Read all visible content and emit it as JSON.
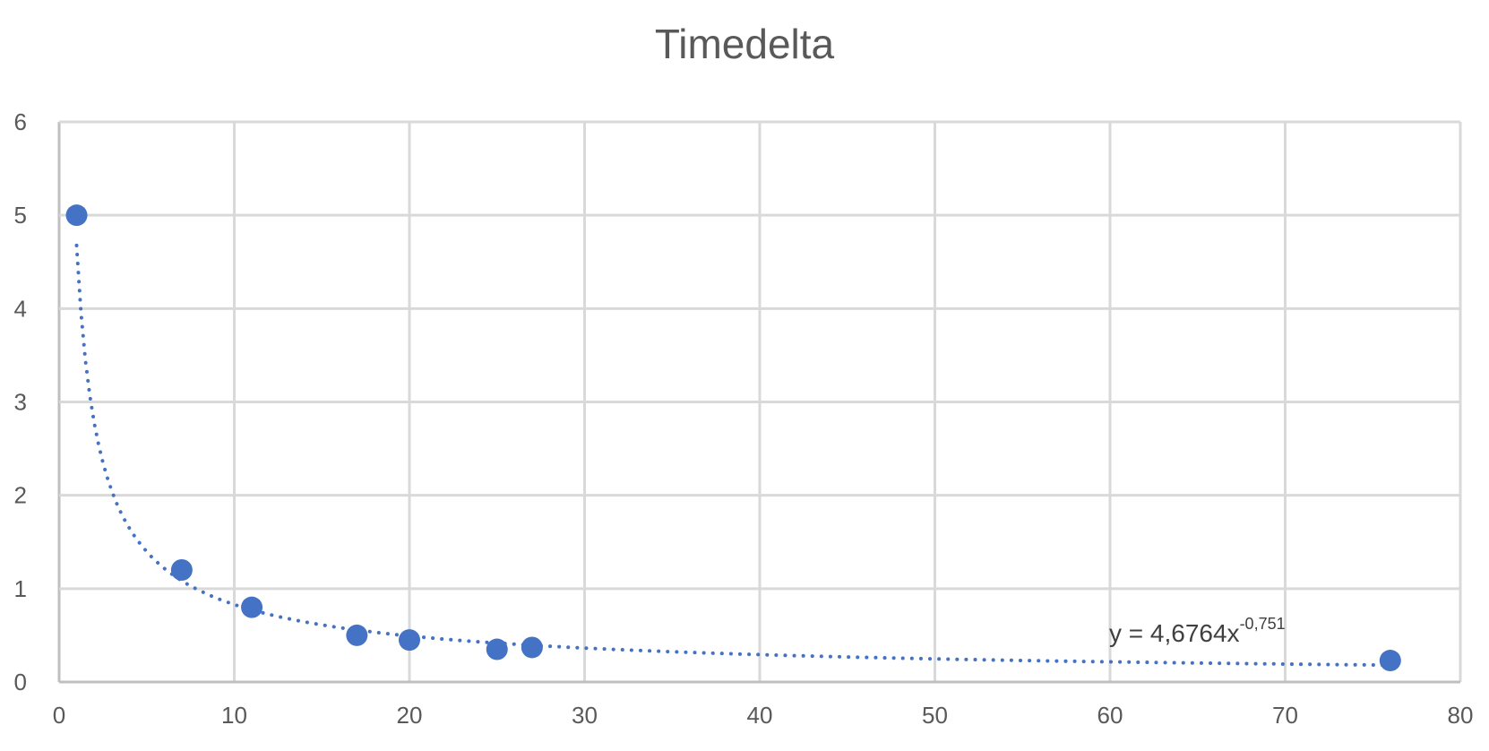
{
  "chart_data": {
    "type": "scatter",
    "title": "Timedelta",
    "xlabel": "",
    "ylabel": "",
    "xlim": [
      0,
      80
    ],
    "ylim": [
      0,
      6
    ],
    "x_ticks": [
      "0",
      "10",
      "20",
      "30",
      "40",
      "50",
      "60",
      "70",
      "80"
    ],
    "y_ticks": [
      "0",
      "1",
      "2",
      "3",
      "4",
      "5",
      "6"
    ],
    "grid": true,
    "legend": "none",
    "series": [
      {
        "points": [
          {
            "x": 1,
            "y": 5.0
          },
          {
            "x": 7,
            "y": 1.2
          },
          {
            "x": 11,
            "y": 0.8
          },
          {
            "x": 17,
            "y": 0.5
          },
          {
            "x": 20,
            "y": 0.45
          },
          {
            "x": 25,
            "y": 0.35
          },
          {
            "x": 27,
            "y": 0.37
          },
          {
            "x": 76,
            "y": 0.23
          }
        ],
        "color": "#4472C4"
      }
    ],
    "trendline": {
      "type": "power",
      "coefficient": 4.6764,
      "exponent": -0.751,
      "color": "#4472C4",
      "style": "dotted",
      "label_base": "y = 4,6764x",
      "label_exponent": "-0,751"
    },
    "colors": {
      "grid": "#d9d9d9",
      "axis": "#bfbfbf",
      "text": "#595959"
    }
  }
}
